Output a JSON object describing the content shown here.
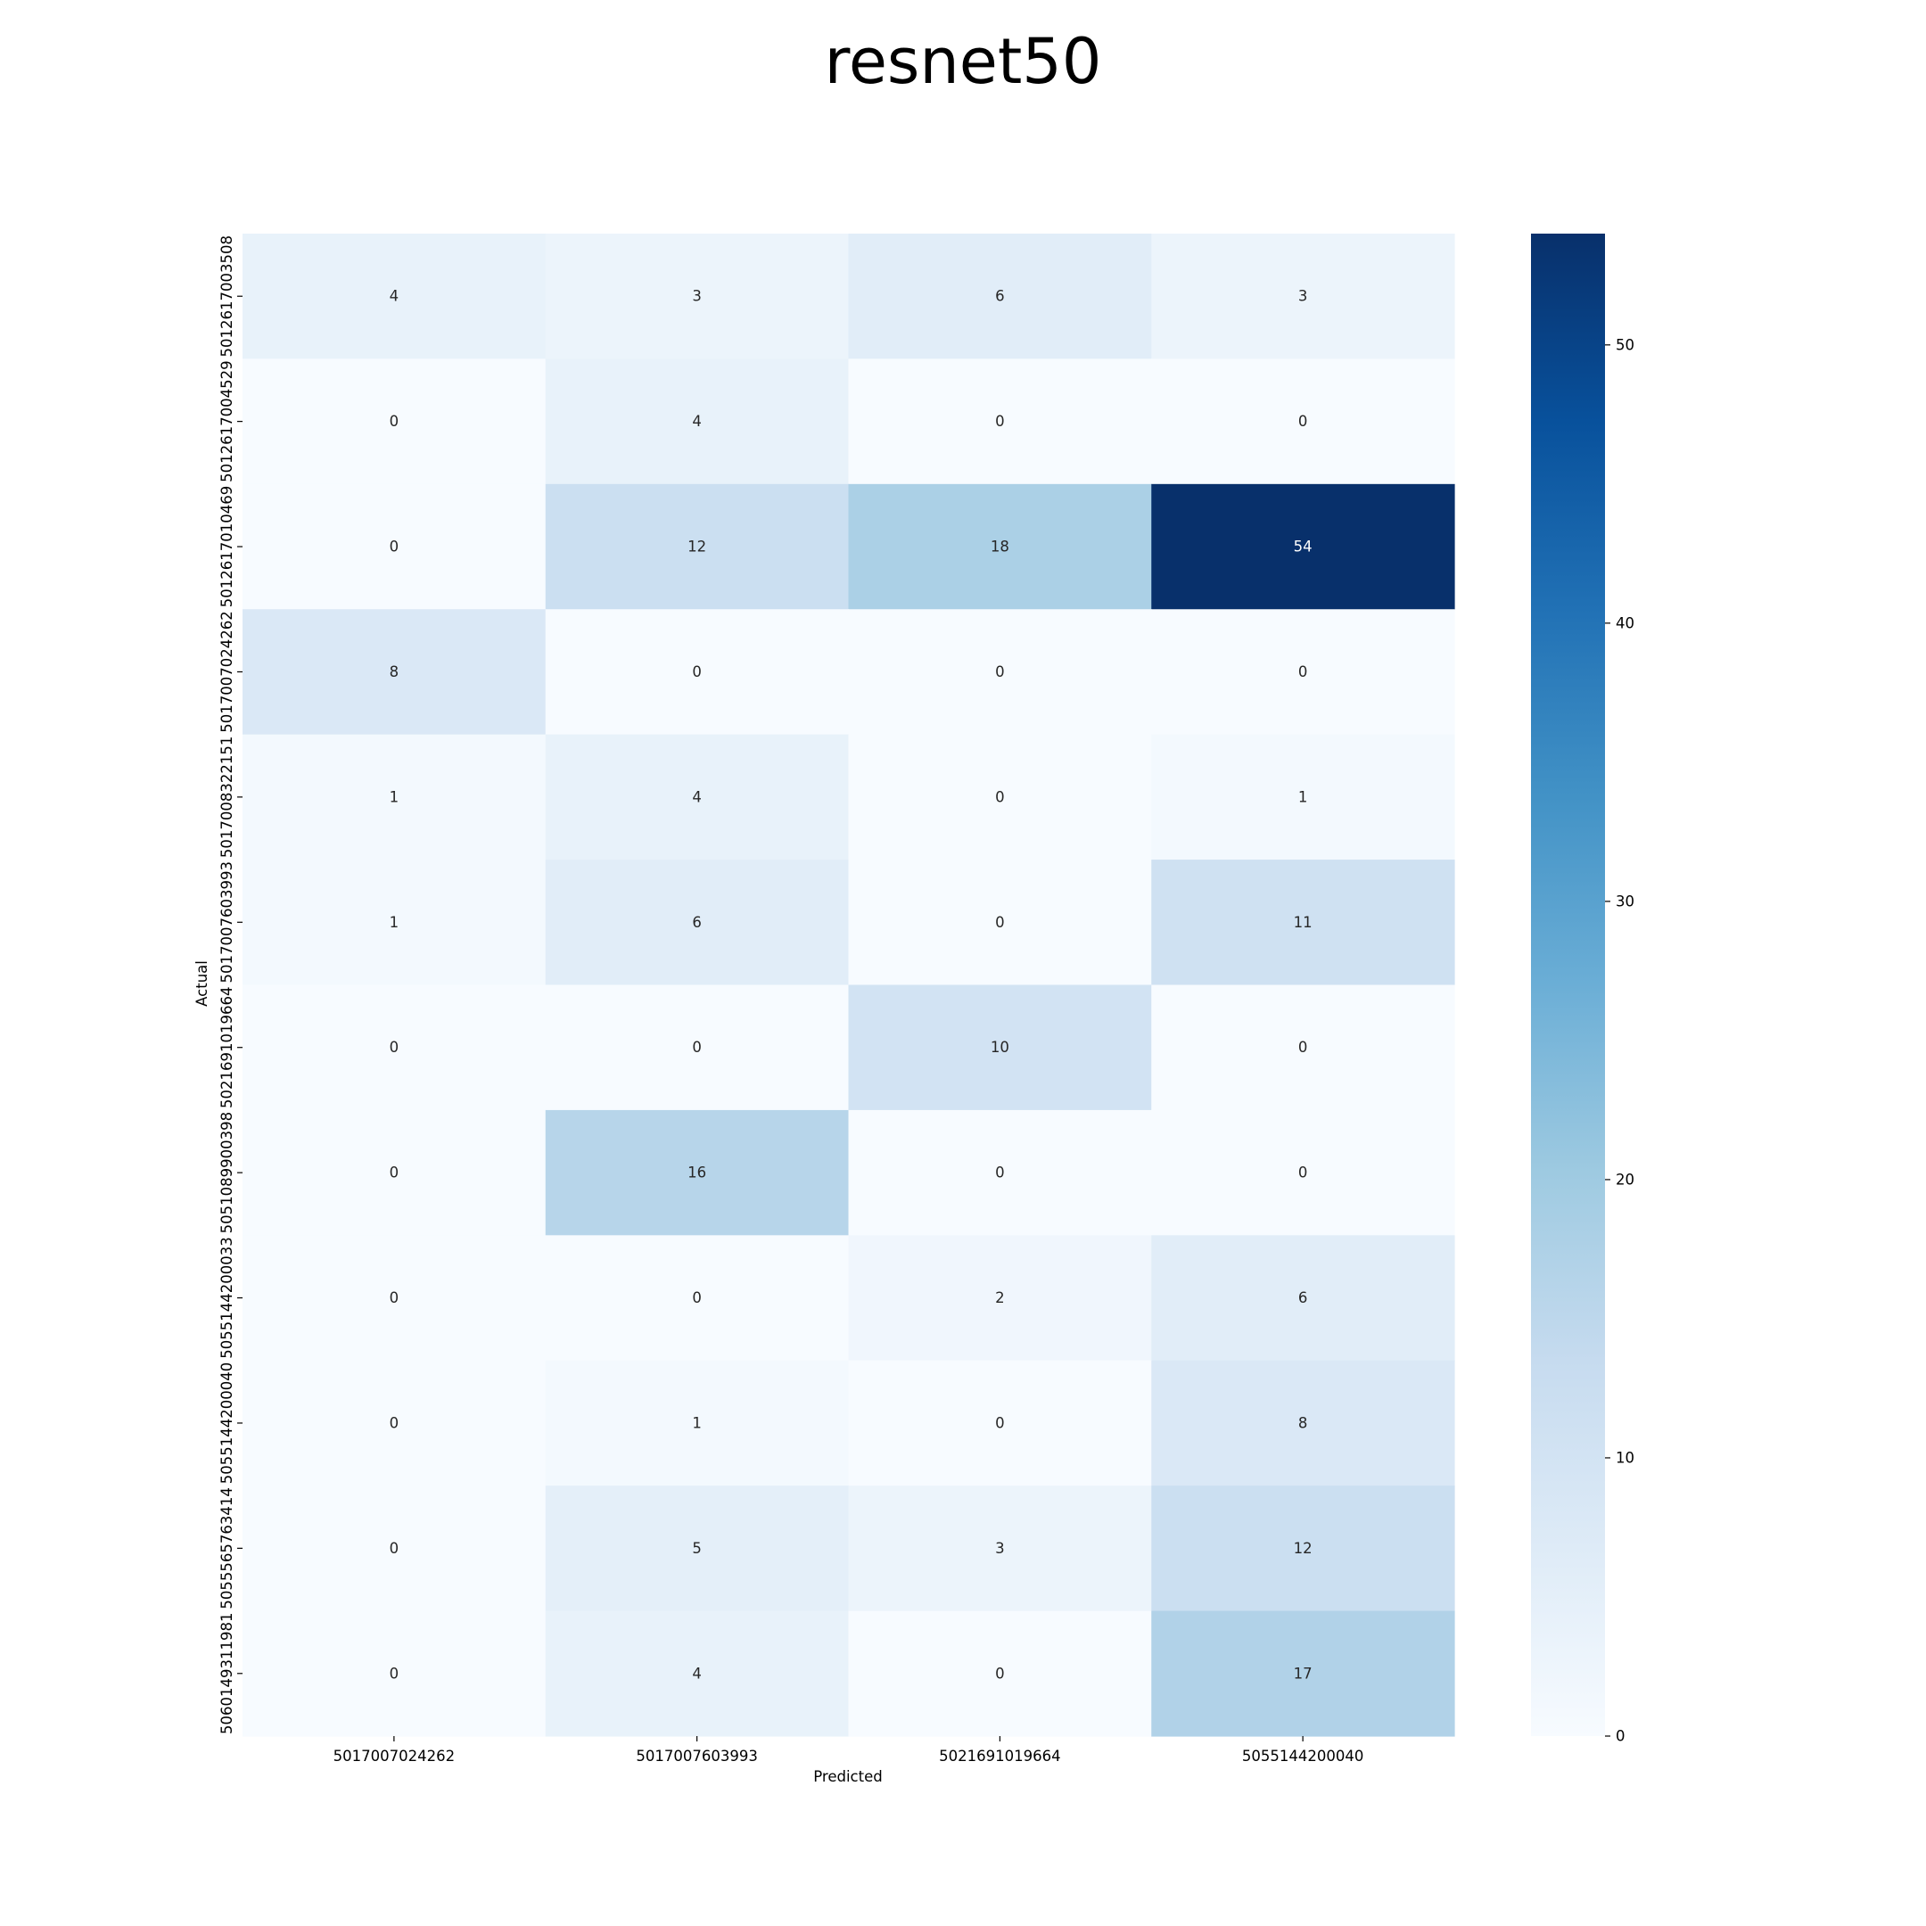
{
  "chart_data": {
    "type": "heatmap",
    "title": "resnet50",
    "xlabel": "Predicted",
    "ylabel": "Actual",
    "x_categories": [
      "5017007024262",
      "5017007603993",
      "5021691019664",
      "5055144200040"
    ],
    "y_categories": [
      "5012617003508",
      "5012617004529",
      "5012617010469",
      "5017007024262",
      "5017008322151",
      "5017007603993",
      "5021691019664",
      "5051089900398",
      "5055144200033",
      "5055144200040",
      "5055565763414",
      "5060149311981"
    ],
    "values": [
      [
        4,
        3,
        6,
        3
      ],
      [
        0,
        4,
        0,
        0
      ],
      [
        0,
        12,
        18,
        54
      ],
      [
        8,
        0,
        0,
        0
      ],
      [
        1,
        4,
        0,
        1
      ],
      [
        1,
        6,
        0,
        11
      ],
      [
        0,
        0,
        10,
        0
      ],
      [
        0,
        16,
        0,
        0
      ],
      [
        0,
        0,
        2,
        6
      ],
      [
        0,
        1,
        0,
        8
      ],
      [
        0,
        5,
        3,
        12
      ],
      [
        0,
        4,
        0,
        17
      ]
    ],
    "colormap": "Blues",
    "vmin": 0,
    "vmax": 54,
    "colorbar_ticks": [
      0,
      10,
      20,
      30,
      40,
      50
    ],
    "grid": false,
    "annotated": true
  }
}
